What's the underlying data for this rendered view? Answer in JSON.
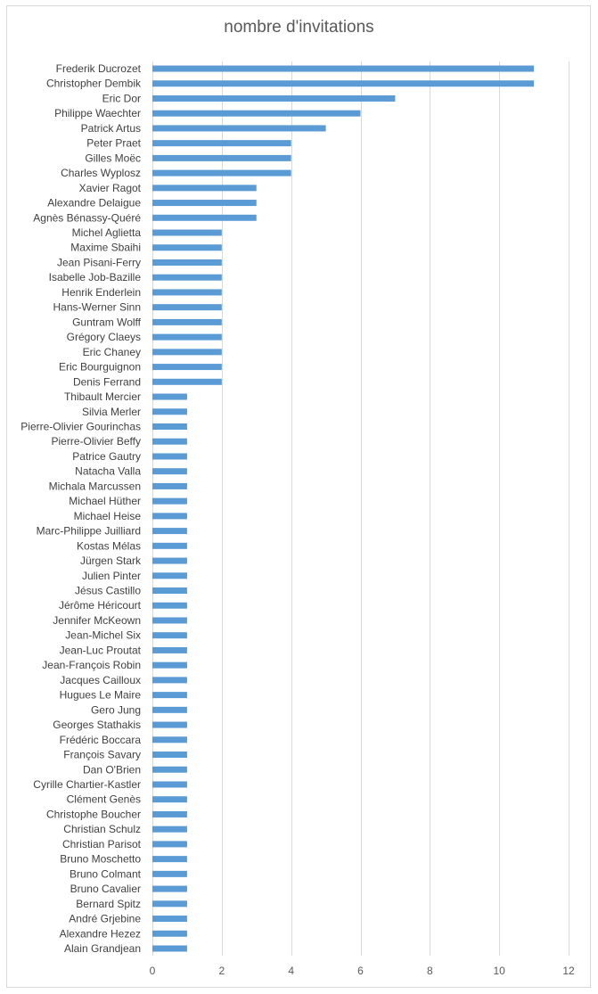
{
  "chart_data": {
    "type": "bar",
    "orientation": "horizontal",
    "title": "nombre d'invitations",
    "xlabel": "",
    "ylabel": "",
    "xlim": [
      0,
      12
    ],
    "x_ticks": [
      0,
      2,
      4,
      6,
      8,
      10,
      12
    ],
    "grid": "vertical",
    "legend": "none",
    "bar_color": "#5b9bd5",
    "categories": [
      "Frederik Ducrozet",
      "Christopher Dembik",
      "Eric Dor",
      "Philippe Waechter",
      "Patrick Artus",
      "Peter Praet",
      "Gilles Moëc",
      "Charles Wyplosz",
      "Xavier Ragot",
      "Alexandre Delaigue",
      "Agnès Bénassy-Quéré",
      "Michel Aglietta",
      "Maxime Sbaihi",
      "Jean Pisani-Ferry",
      "Isabelle Job-Bazille",
      "Henrik Enderlein",
      "Hans-Werner Sinn",
      "Guntram Wolff",
      "Grégory Claeys",
      "Eric Chaney",
      "Eric Bourguignon",
      "Denis Ferrand",
      "Thibault Mercier",
      "Silvia Merler",
      "Pierre-Olivier Gourinchas",
      "Pierre-Olivier Beffy",
      "Patrice Gautry",
      "Natacha Valla",
      "Michala Marcussen",
      "Michael Hüther",
      "Michael Heise",
      "Marc-Philippe Juilliard",
      "Kostas Mélas",
      "Jürgen Stark",
      "Julien Pinter",
      "Jésus Castillo",
      "Jérôme Héricourt",
      "Jennifer McKeown",
      "Jean-Michel Six",
      "Jean-Luc Proutat",
      "Jean-François Robin",
      "Jacques Cailloux",
      "Hugues Le Maire",
      "Gero Jung",
      "Georges Stathakis",
      "Frédéric Boccara",
      "François Savary",
      "Dan O'Brien",
      "Cyrille Chartier-Kastler",
      "Clément Genès",
      "Christophe Boucher",
      "Christian Schulz",
      "Christian Parisot",
      "Bruno Moschetto",
      "Bruno Colmant",
      "Bruno Cavalier",
      "Bernard Spitz",
      "André Grjebine",
      "Alexandre Hezez",
      "Alain Grandjean"
    ],
    "values": [
      11,
      11,
      7,
      6,
      5,
      4,
      4,
      4,
      3,
      3,
      3,
      2,
      2,
      2,
      2,
      2,
      2,
      2,
      2,
      2,
      2,
      2,
      1,
      1,
      1,
      1,
      1,
      1,
      1,
      1,
      1,
      1,
      1,
      1,
      1,
      1,
      1,
      1,
      1,
      1,
      1,
      1,
      1,
      1,
      1,
      1,
      1,
      1,
      1,
      1,
      1,
      1,
      1,
      1,
      1,
      1,
      1,
      1,
      1,
      1
    ]
  }
}
